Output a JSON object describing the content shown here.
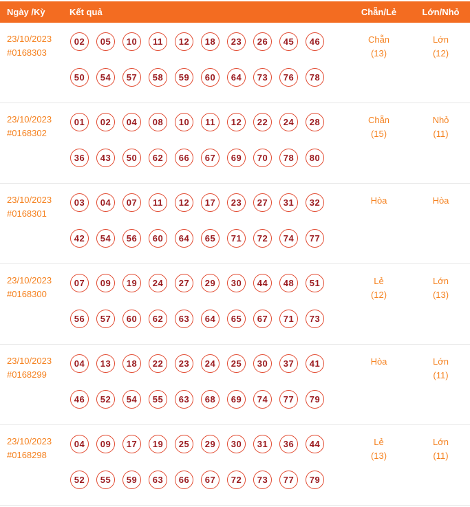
{
  "colors": {
    "header_bg": "#f36c21",
    "header_text": "#ffffff",
    "accent_text": "#f58220",
    "ball_border": "#e2492f",
    "ball_text": "#9b1c20",
    "divider": "#e8e8e8"
  },
  "header": {
    "date_label": "Ngày /Kỳ",
    "result_label": "Kết quả",
    "evenodd_label": "Chẵn/Lẻ",
    "bigsmall_label": "Lớn/Nhỏ"
  },
  "rows": [
    {
      "date": "23/10/2023",
      "period": "#0168303",
      "numbers_line1": [
        "02",
        "05",
        "10",
        "11",
        "12",
        "18",
        "23",
        "26",
        "45",
        "46"
      ],
      "numbers_line2": [
        "50",
        "54",
        "57",
        "58",
        "59",
        "60",
        "64",
        "73",
        "76",
        "78"
      ],
      "even_odd": {
        "label": "Chẵn",
        "count": "(13)"
      },
      "big_small": {
        "label": "Lớn",
        "count": "(12)"
      }
    },
    {
      "date": "23/10/2023",
      "period": "#0168302",
      "numbers_line1": [
        "01",
        "02",
        "04",
        "08",
        "10",
        "11",
        "12",
        "22",
        "24",
        "28"
      ],
      "numbers_line2": [
        "36",
        "43",
        "50",
        "62",
        "66",
        "67",
        "69",
        "70",
        "78",
        "80"
      ],
      "even_odd": {
        "label": "Chẵn",
        "count": "(15)"
      },
      "big_small": {
        "label": "Nhỏ",
        "count": "(11)"
      }
    },
    {
      "date": "23/10/2023",
      "period": "#0168301",
      "numbers_line1": [
        "03",
        "04",
        "07",
        "11",
        "12",
        "17",
        "23",
        "27",
        "31",
        "32"
      ],
      "numbers_line2": [
        "42",
        "54",
        "56",
        "60",
        "64",
        "65",
        "71",
        "72",
        "74",
        "77"
      ],
      "even_odd": {
        "label": "Hòa",
        "count": ""
      },
      "big_small": {
        "label": "Hòa",
        "count": ""
      }
    },
    {
      "date": "23/10/2023",
      "period": "#0168300",
      "numbers_line1": [
        "07",
        "09",
        "19",
        "24",
        "27",
        "29",
        "30",
        "44",
        "48",
        "51"
      ],
      "numbers_line2": [
        "56",
        "57",
        "60",
        "62",
        "63",
        "64",
        "65",
        "67",
        "71",
        "73"
      ],
      "even_odd": {
        "label": "Lẻ",
        "count": "(12)"
      },
      "big_small": {
        "label": "Lớn",
        "count": "(13)"
      }
    },
    {
      "date": "23/10/2023",
      "period": "#0168299",
      "numbers_line1": [
        "04",
        "13",
        "18",
        "22",
        "23",
        "24",
        "25",
        "30",
        "37",
        "41"
      ],
      "numbers_line2": [
        "46",
        "52",
        "54",
        "55",
        "63",
        "68",
        "69",
        "74",
        "77",
        "79"
      ],
      "even_odd": {
        "label": "Hòa",
        "count": ""
      },
      "big_small": {
        "label": "Lớn",
        "count": "(11)"
      }
    },
    {
      "date": "23/10/2023",
      "period": "#0168298",
      "numbers_line1": [
        "04",
        "09",
        "17",
        "19",
        "25",
        "29",
        "30",
        "31",
        "36",
        "44"
      ],
      "numbers_line2": [
        "52",
        "55",
        "59",
        "63",
        "66",
        "67",
        "72",
        "73",
        "77",
        "79"
      ],
      "even_odd": {
        "label": "Lẻ",
        "count": "(13)"
      },
      "big_small": {
        "label": "Lớn",
        "count": "(11)"
      }
    }
  ]
}
